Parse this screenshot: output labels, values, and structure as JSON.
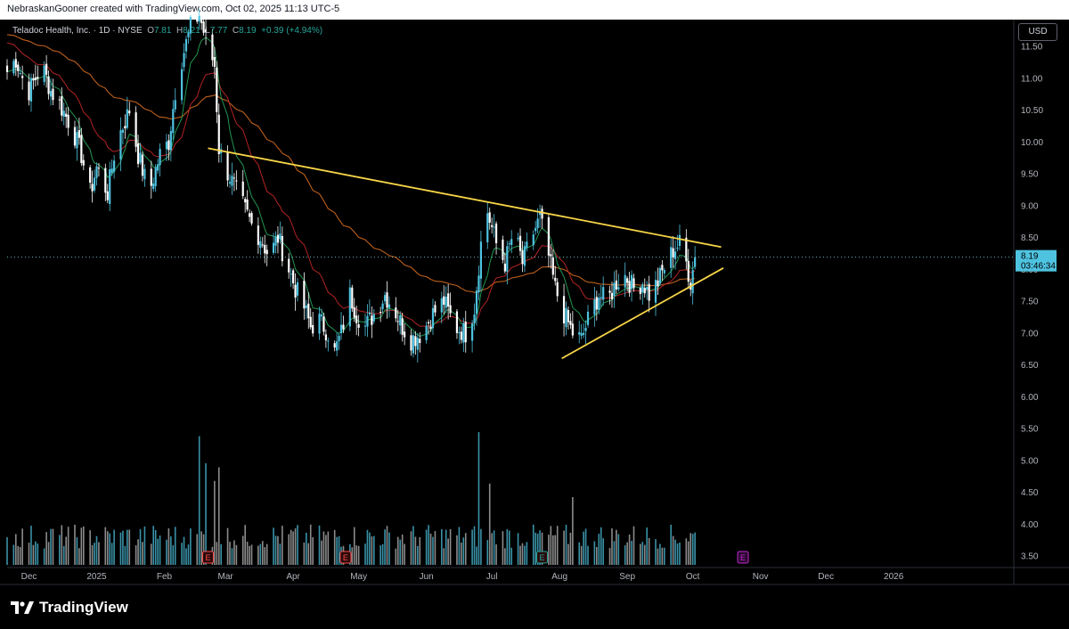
{
  "header": {
    "attribution": "NebraskanGooner created with TradingView.com, Oct 02, 2025 11:13 UTC-5"
  },
  "legend": {
    "symbol": "Teladoc Health, Inc. · 1D · NYSE",
    "o_label": "O",
    "o": "7.81",
    "h_label": "H",
    "h": "8.21",
    "l_label": "L",
    "l": "7.77",
    "c_label": "C",
    "c": "8.19",
    "change": "+0.39 (+4.94%)"
  },
  "currency": "USD",
  "last_price": {
    "value": "8.19",
    "countdown": "03:46:34"
  },
  "brand": "TradingView",
  "colors": {
    "up": "#4ec3e0",
    "down": "#ffffff",
    "ema_short": "#26a65a",
    "ema_mid": "#c62828",
    "ema_long": "#d2691e",
    "trendline": "#f7d548",
    "earnings": "#ff4d4d",
    "earnings_future": "#c026d3",
    "earnings_green": "#26a69a"
  },
  "chart_data": {
    "type": "candlestick",
    "ylim": [
      3.4,
      11.8
    ],
    "y_ticks": [
      "11.50",
      "11.00",
      "10.50",
      "10.00",
      "9.50",
      "9.00",
      "8.50",
      "8.00",
      "7.50",
      "7.00",
      "6.50",
      "6.00",
      "5.50",
      "5.00",
      "4.50",
      "4.00",
      "3.50"
    ],
    "x_ticks": [
      "Dec",
      "2025",
      "Feb",
      "Mar",
      "Apr",
      "May",
      "Jun",
      "Jul",
      "Aug",
      "Sep",
      "Oct",
      "Nov",
      "Dec",
      "2026"
    ],
    "x_tick_days": [
      0,
      31,
      62,
      90,
      121,
      151,
      182,
      212,
      243,
      274,
      304,
      335,
      365,
      396
    ],
    "x_range_days": [
      -10,
      451
    ],
    "last_day": 305,
    "anchors": [
      [
        -10,
        11.1
      ],
      [
        -6,
        11.3
      ],
      [
        -3,
        11.0
      ],
      [
        0,
        10.8
      ],
      [
        6,
        11.2
      ],
      [
        10,
        10.8
      ],
      [
        14,
        10.6
      ],
      [
        20,
        10.2
      ],
      [
        24,
        9.8
      ],
      [
        28,
        9.2
      ],
      [
        31,
        9.6
      ],
      [
        36,
        9.2
      ],
      [
        40,
        10.0
      ],
      [
        46,
        10.5
      ],
      [
        50,
        9.8
      ],
      [
        55,
        9.2
      ],
      [
        60,
        9.8
      ],
      [
        64,
        10.0
      ],
      [
        67,
        10.8
      ],
      [
        70,
        11.3
      ],
      [
        74,
        11.8
      ],
      [
        78,
        12.0
      ],
      [
        81,
        11.6
      ],
      [
        85,
        11.2
      ],
      [
        87,
        9.9
      ],
      [
        90,
        9.6
      ],
      [
        94,
        9.3
      ],
      [
        98,
        9.0
      ],
      [
        102,
        8.7
      ],
      [
        106,
        8.5
      ],
      [
        110,
        8.2
      ],
      [
        114,
        8.5
      ],
      [
        118,
        8.1
      ],
      [
        122,
        7.7
      ],
      [
        126,
        7.4
      ],
      [
        129,
        7.1
      ],
      [
        133,
        7.2
      ],
      [
        137,
        7.0
      ],
      [
        140,
        6.7
      ],
      [
        143,
        7.0
      ],
      [
        147,
        7.6
      ],
      [
        150,
        7.3
      ],
      [
        154,
        7.1
      ],
      [
        158,
        7.3
      ],
      [
        163,
        7.6
      ],
      [
        167,
        7.4
      ],
      [
        171,
        7.1
      ],
      [
        175,
        6.9
      ],
      [
        180,
        7.0
      ],
      [
        185,
        7.3
      ],
      [
        190,
        7.5
      ],
      [
        195,
        7.1
      ],
      [
        200,
        7.0
      ],
      [
        204,
        7.4
      ],
      [
        207,
        8.4
      ],
      [
        210,
        8.9
      ],
      [
        214,
        8.4
      ],
      [
        218,
        8.1
      ],
      [
        222,
        8.6
      ],
      [
        226,
        8.1
      ],
      [
        230,
        8.5
      ],
      [
        234,
        8.8
      ],
      [
        238,
        8.2
      ],
      [
        241,
        7.7
      ],
      [
        245,
        7.3
      ],
      [
        249,
        7.0
      ],
      [
        253,
        6.9
      ],
      [
        257,
        7.3
      ],
      [
        261,
        7.6
      ],
      [
        265,
        7.5
      ],
      [
        269,
        7.8
      ],
      [
        273,
        7.9
      ],
      [
        277,
        7.7
      ],
      [
        281,
        7.8
      ],
      [
        284,
        7.6
      ],
      [
        288,
        7.8
      ],
      [
        292,
        8.1
      ],
      [
        295,
        8.3
      ],
      [
        298,
        8.4
      ],
      [
        301,
        8.1
      ],
      [
        303,
        7.8
      ],
      [
        305,
        8.19
      ]
    ],
    "big_volume_days": [
      {
        "day": 76,
        "h": 0.78
      },
      {
        "day": 78,
        "h": 0.95
      },
      {
        "day": 81,
        "h": 0.75
      },
      {
        "day": 85,
        "h": 0.62
      },
      {
        "day": 87,
        "h": 0.72
      },
      {
        "day": 206,
        "h": 0.98
      },
      {
        "day": 208,
        "h": 0.8
      },
      {
        "day": 211,
        "h": 0.6
      },
      {
        "day": 249,
        "h": 0.5
      },
      {
        "day": 251,
        "h": 0.45
      }
    ],
    "earnings": [
      {
        "day": 82,
        "label": "E",
        "kind": "red"
      },
      {
        "day": 145,
        "label": "E",
        "kind": "red"
      },
      {
        "day": 235,
        "label": "E",
        "kind": "green"
      },
      {
        "day": 327,
        "label": "E",
        "kind": "future"
      }
    ],
    "trendlines": [
      {
        "x1_day": 82,
        "y1": 9.9,
        "x2_day": 317,
        "y2": 8.35
      },
      {
        "x1_day": 244,
        "y1": 6.6,
        "x2_day": 318,
        "y2": 8.02
      }
    ]
  }
}
